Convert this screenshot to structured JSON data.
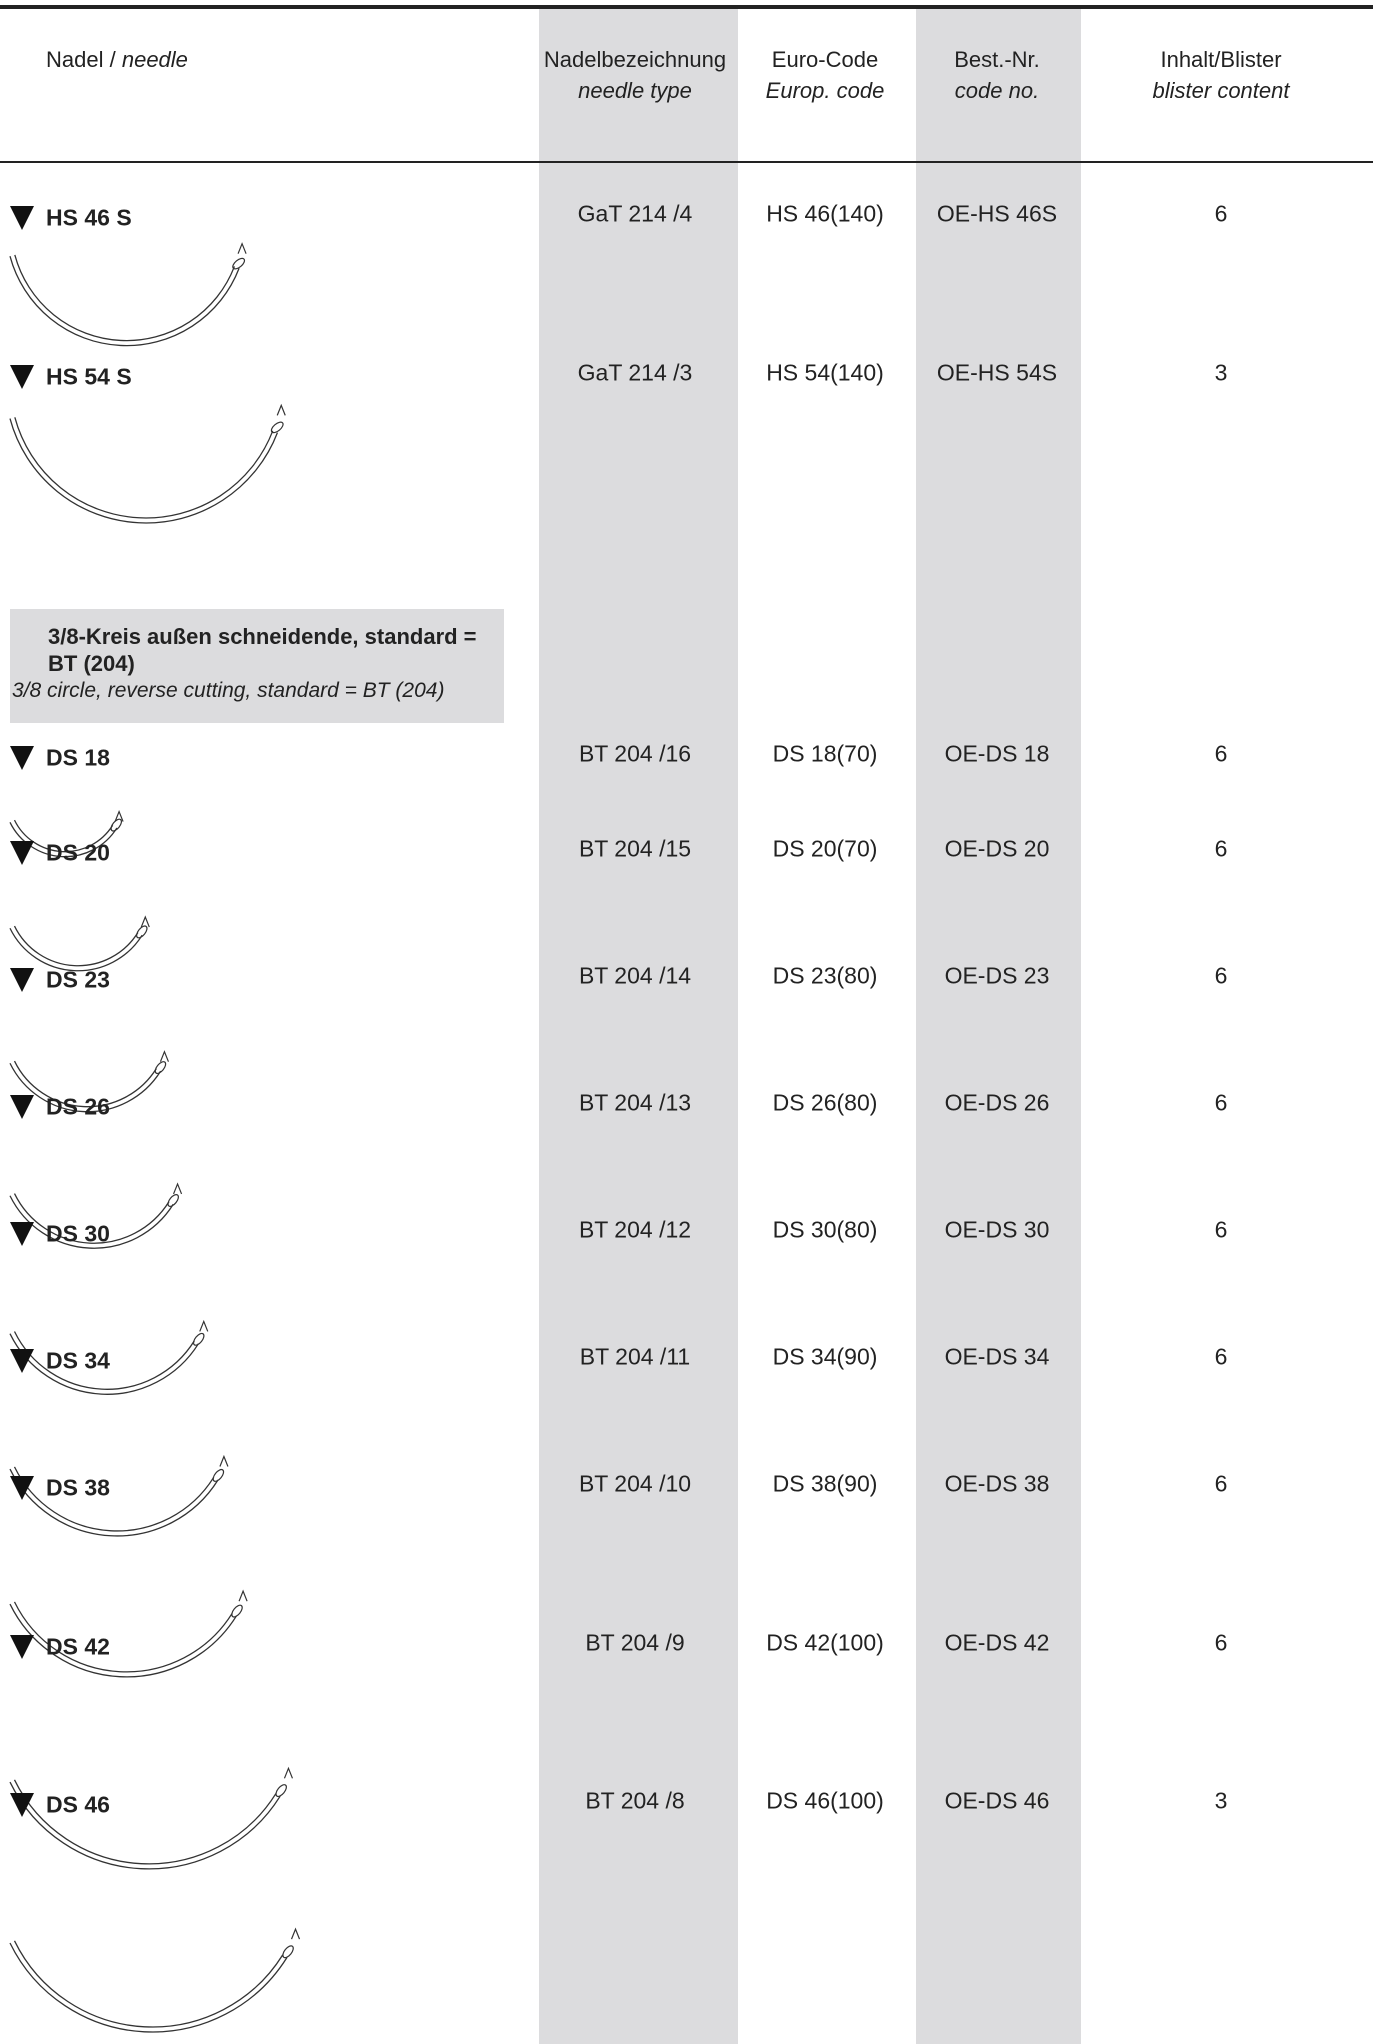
{
  "header": {
    "columns": [
      {
        "de": "Nadel /",
        "en": "needle"
      },
      {
        "de": "Nadelbezeichnung",
        "en": "needle type"
      },
      {
        "de": "Euro-Code",
        "en": "Europ. code"
      },
      {
        "de": "Best.-Nr.",
        "en": "code no."
      },
      {
        "de": "Inhalt/Blister",
        "en": "blister content"
      }
    ]
  },
  "section": {
    "title": "3/8-Kreis außen schneidende, standard = BT (204)",
    "subtitle": "3/8 circle, reverse cutting, standard = BT (204)"
  },
  "rows": [
    [
      "HS 46 S",
      "GaT 214 /4",
      "HS 46(140)",
      "OE-HS 46S",
      "6"
    ],
    [
      "HS 54 S",
      "GaT 214 /3",
      "HS 54(140)",
      "OE-HS 54S",
      "3"
    ],
    [
      "DS 18",
      "BT 204 /16",
      "DS 18(70)",
      "OE-DS 18",
      "6"
    ],
    [
      "DS 20",
      "BT 204 /15",
      "DS 20(70)",
      "OE-DS 20",
      "6"
    ],
    [
      "DS 23",
      "BT 204 /14",
      "DS 23(80)",
      "OE-DS 23",
      "6"
    ],
    [
      "DS 26",
      "BT 204 /13",
      "DS 26(80)",
      "OE-DS 26",
      "6"
    ],
    [
      "DS 30",
      "BT 204 /12",
      "DS 30(80)",
      "OE-DS 30",
      "6"
    ],
    [
      "DS 34",
      "BT 204 /11",
      "DS 34(90)",
      "OE-DS 34",
      "6"
    ],
    [
      "DS 38",
      "BT 204 /10",
      "DS 38(90)",
      "OE-DS 38",
      "6"
    ],
    [
      "DS 42",
      "BT 204 /9",
      "DS 42(100)",
      "OE-DS 42",
      "6"
    ],
    [
      "DS 46",
      "BT 204 /8",
      "DS 46(100)",
      "OE-DS 46",
      "3"
    ]
  ]
}
